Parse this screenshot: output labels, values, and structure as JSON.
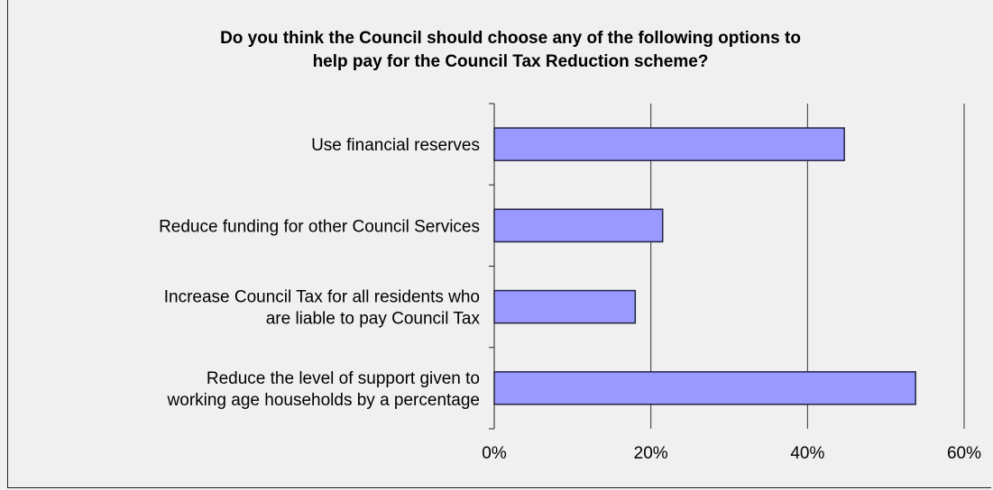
{
  "chart_data": {
    "type": "bar",
    "orientation": "horizontal",
    "title_lines": [
      "Do you think the Council should choose any of the following options to",
      "help pay for the Council Tax Reduction scheme?"
    ],
    "categories": [
      [
        "Use financial reserves"
      ],
      [
        "Reduce funding for other Council Services"
      ],
      [
        "Increase Council Tax for all residents who",
        "are liable to pay Council Tax"
      ],
      [
        "Reduce the level of support given to",
        "working age households by a percentage"
      ]
    ],
    "values": [
      44.7,
      21.5,
      18.0,
      53.8
    ],
    "xlim": [
      0,
      60
    ],
    "x_ticks": [
      "0%",
      "20%",
      "40%",
      "60%"
    ],
    "x_tick_values": [
      0,
      20,
      40,
      60
    ],
    "grid": "vertical",
    "colors": {
      "bar_fill": "#9999ff",
      "bar_stroke": "#222244",
      "grid": "#333333",
      "background": "#f0f0f0"
    }
  }
}
